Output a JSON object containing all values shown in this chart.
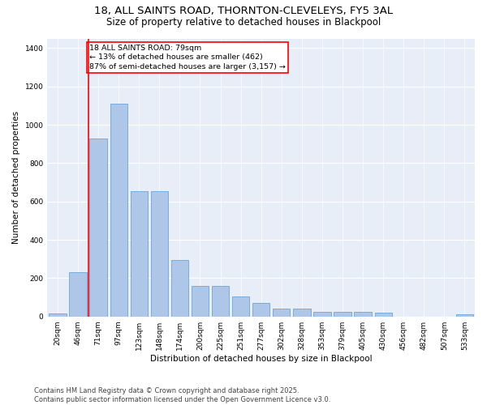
{
  "title_line1": "18, ALL SAINTS ROAD, THORNTON-CLEVELEYS, FY5 3AL",
  "title_line2": "Size of property relative to detached houses in Blackpool",
  "xlabel": "Distribution of detached houses by size in Blackpool",
  "ylabel": "Number of detached properties",
  "footnote": "Contains HM Land Registry data © Crown copyright and database right 2025.\nContains public sector information licensed under the Open Government Licence v3.0.",
  "annotation_line1": "18 ALL SAINTS ROAD: 79sqm",
  "annotation_line2": "← 13% of detached houses are smaller (462)",
  "annotation_line3": "87% of semi-detached houses are larger (3,157) →",
  "bar_labels": [
    "20sqm",
    "46sqm",
    "71sqm",
    "97sqm",
    "123sqm",
    "148sqm",
    "174sqm",
    "200sqm",
    "225sqm",
    "251sqm",
    "277sqm",
    "302sqm",
    "328sqm",
    "353sqm",
    "379sqm",
    "405sqm",
    "430sqm",
    "456sqm",
    "482sqm",
    "507sqm",
    "533sqm"
  ],
  "bar_values": [
    15,
    230,
    930,
    1110,
    655,
    655,
    295,
    160,
    160,
    105,
    70,
    40,
    40,
    25,
    25,
    25,
    20,
    0,
    0,
    0,
    10
  ],
  "bar_color": "#aec6e8",
  "bar_edge_color": "#5b9bd5",
  "vline_color": "red",
  "annotation_box_edge_color": "red",
  "ylim": [
    0,
    1450
  ],
  "background_color": "#e8eef8",
  "grid_color": "white",
  "title_fontsize": 9.5,
  "subtitle_fontsize": 8.5,
  "axis_label_fontsize": 7.5,
  "tick_fontsize": 6.5,
  "annotation_fontsize": 6.8,
  "footnote_fontsize": 6.0
}
